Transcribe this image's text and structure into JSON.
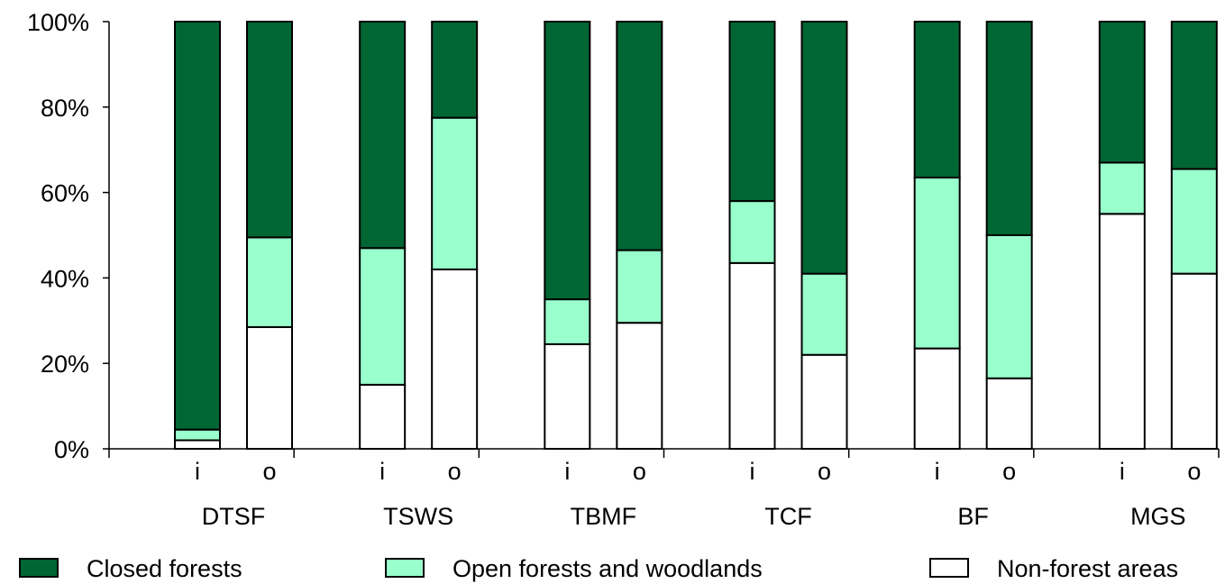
{
  "chart_data": {
    "type": "bar",
    "stacked": true,
    "percent": true,
    "ylim": [
      0,
      100
    ],
    "yticks": [
      "0%",
      "20%",
      "40%",
      "60%",
      "80%",
      "100%"
    ],
    "groups": [
      "DTSF",
      "TSWS",
      "TBMF",
      "TCF",
      "BF",
      "MGS"
    ],
    "sub_categories": [
      "i",
      "o"
    ],
    "series": [
      {
        "name": "Non-forest areas",
        "color": "#ffffff",
        "values": [
          2,
          28.5,
          15,
          42,
          24.5,
          29.5,
          43.5,
          22,
          23.5,
          16.5,
          55,
          41
        ]
      },
      {
        "name": "Open forests and woodlands",
        "color": "#99ffcc",
        "values": [
          2.5,
          21,
          32,
          35.5,
          10.5,
          17,
          14.5,
          19,
          40,
          33.5,
          12,
          24.5
        ]
      },
      {
        "name": "Closed forests",
        "color": "#006633",
        "values": [
          95.5,
          50.5,
          53,
          22.5,
          65,
          53.5,
          42,
          59,
          36.5,
          50,
          33,
          34.5
        ]
      }
    ],
    "legend": {
      "position": "bottom",
      "entries": [
        "Closed forests",
        "Open forests and woodlands",
        "Non-forest areas"
      ]
    },
    "grid": false
  }
}
